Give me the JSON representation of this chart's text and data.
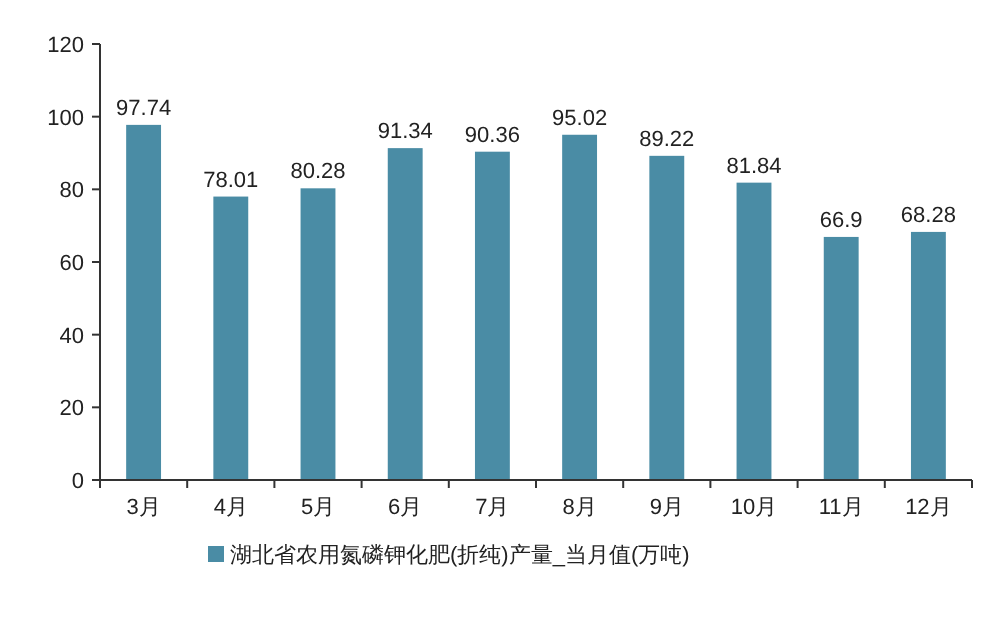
{
  "chart_data": {
    "type": "bar",
    "categories": [
      "3月",
      "4月",
      "5月",
      "6月",
      "7月",
      "8月",
      "9月",
      "10月",
      "11月",
      "12月"
    ],
    "series": [
      {
        "name": "湖北省农用氮磷钾化肥(折纯)产量_当月值(万吨)",
        "color": "#4a8ca5",
        "values": [
          97.74,
          78.01,
          80.28,
          91.34,
          90.36,
          95.02,
          89.22,
          81.84,
          66.9,
          68.28
        ]
      }
    ],
    "ylim": [
      0,
      120
    ],
    "yticks": [
      0,
      20,
      40,
      60,
      80,
      100,
      120
    ],
    "data_labels": true,
    "legend": "bottom"
  }
}
